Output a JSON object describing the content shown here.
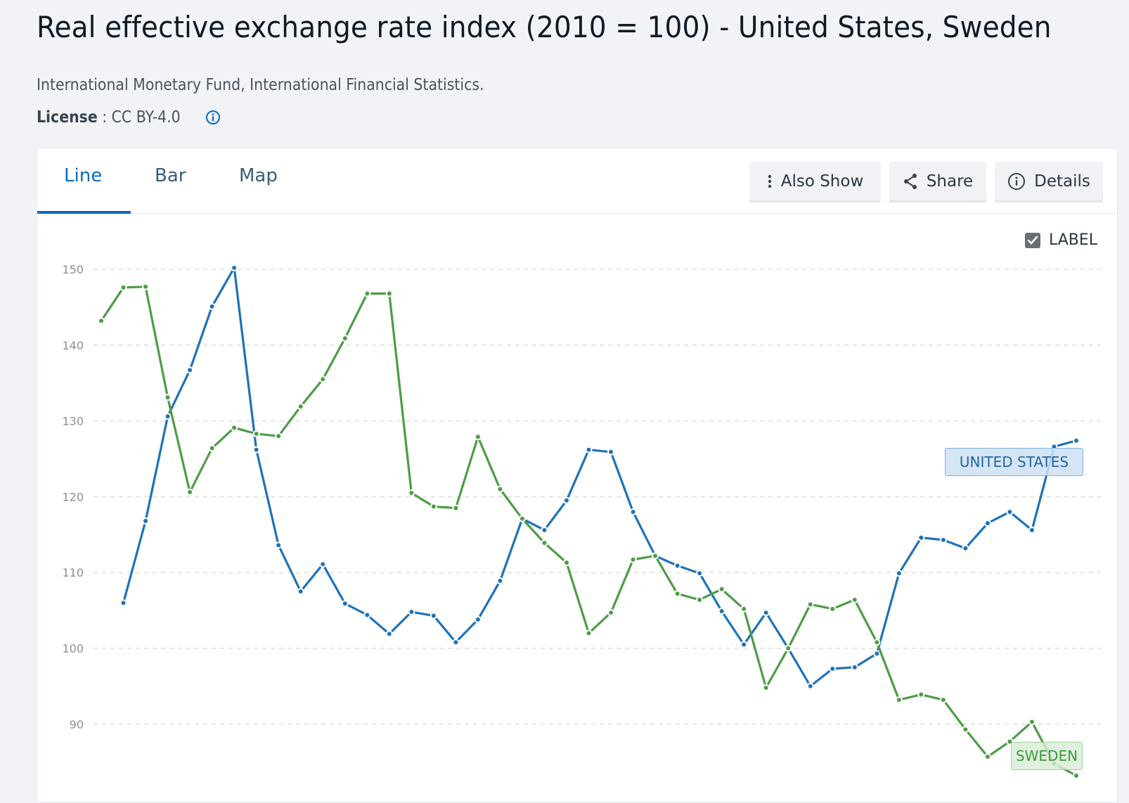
{
  "header": {
    "title": "Real effective exchange rate index (2010 = 100) - United States, Sweden",
    "source": "International Monetary Fund, International Financial Statistics.",
    "license_label": "License",
    "license_sep": " : ",
    "license_value": "CC BY-4.0",
    "license_icon": "info-icon"
  },
  "tabs": [
    {
      "label": "Line",
      "active": true
    },
    {
      "label": "Bar",
      "active": false
    },
    {
      "label": "Map",
      "active": false
    }
  ],
  "toolbar": {
    "also_show": {
      "label": "Also Show",
      "icon": "more-vertical-icon"
    },
    "share": {
      "label": "Share",
      "icon": "share-icon"
    },
    "details": {
      "label": "Details",
      "icon": "info-icon"
    }
  },
  "label_toggle": {
    "label": "LABEL",
    "checked": true
  },
  "colors": {
    "accent": "#0a6bbd",
    "united_states": "#1f72b8",
    "sweden": "#4e9c47"
  },
  "chart_data": {
    "type": "line",
    "title": "Real effective exchange rate index (2010 = 100) - United States, Sweden",
    "xlabel": "",
    "ylabel": "",
    "ylim": [
      83,
      150
    ],
    "yticks": [
      150,
      140,
      130,
      120,
      110,
      100,
      90
    ],
    "grid": true,
    "point_count": 45,
    "series": [
      {
        "name": "UNITED STATES",
        "color": "#1f72b8",
        "values": [
          null,
          106.0,
          116.8,
          130.6,
          136.7,
          145.1,
          150.2,
          126.2,
          113.6,
          107.5,
          111.1,
          105.9,
          104.4,
          101.9,
          104.8,
          104.3,
          100.8,
          103.8,
          108.9,
          117.1,
          115.6,
          119.5,
          126.2,
          125.9,
          118.0,
          112.2,
          110.9,
          109.9,
          104.9,
          100.5,
          104.7,
          100.0,
          95.0,
          97.3,
          97.5,
          99.3,
          109.9,
          114.6,
          114.3,
          113.2,
          116.5,
          118.0,
          115.6,
          126.6,
          127.4
        ]
      },
      {
        "name": "SWEDEN",
        "color": "#4e9c47",
        "values": [
          143.2,
          147.6,
          147.7,
          133.1,
          120.6,
          126.4,
          129.1,
          128.3,
          128.0,
          131.9,
          135.5,
          140.9,
          146.8,
          146.8,
          120.5,
          118.7,
          118.5,
          127.9,
          121.0,
          117.1,
          113.9,
          111.3,
          102.0,
          104.7,
          111.7,
          112.2,
          107.2,
          106.4,
          107.8,
          105.2,
          94.8,
          100.0,
          105.8,
          105.2,
          106.4,
          100.8,
          93.2,
          93.9,
          93.2,
          89.3,
          85.7,
          87.7,
          90.3,
          84.8,
          83.2
        ]
      }
    ]
  }
}
